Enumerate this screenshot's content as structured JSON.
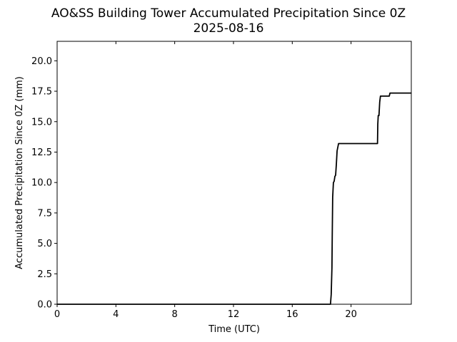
{
  "chart_data": {
    "type": "line",
    "title": "AO&SS Building Tower Accumulated Precipitation Since 0Z",
    "subtitle": "2025-08-16",
    "xlabel": "Time (UTC)",
    "ylabel": "Accumulated Precipitation Since 0Z (mm)",
    "xlim": [
      0,
      24.1
    ],
    "ylim": [
      0,
      21.6
    ],
    "x_ticks": [
      0,
      4,
      8,
      12,
      16,
      20
    ],
    "x_tick_labels": [
      "0",
      "4",
      "8",
      "12",
      "16",
      "20"
    ],
    "y_ticks": [
      0,
      2.5,
      5,
      7.5,
      10,
      12.5,
      15,
      17.5,
      20
    ],
    "y_tick_labels": [
      "0.0",
      "2.5",
      "5.0",
      "7.5",
      "10.0",
      "12.5",
      "15.0",
      "17.5",
      "20.0"
    ],
    "grid": false,
    "series": [
      {
        "color": "#000000",
        "x": [
          0,
          18.6,
          18.65,
          18.7,
          18.72,
          18.75,
          18.8,
          18.85,
          18.9,
          18.95,
          19.0,
          19.05,
          19.1,
          19.15,
          19.2,
          21.0,
          21.8,
          21.82,
          21.85,
          21.9,
          21.95,
          22.0,
          22.6,
          22.65,
          24.1
        ],
        "y": [
          0,
          0,
          0.8,
          3.0,
          5.5,
          8.8,
          10.0,
          10.1,
          10.5,
          10.6,
          11.5,
          12.6,
          12.9,
          13.2,
          13.2,
          13.2,
          13.2,
          14.8,
          15.5,
          15.5,
          16.6,
          17.1,
          17.1,
          17.35,
          17.35
        ]
      }
    ]
  }
}
